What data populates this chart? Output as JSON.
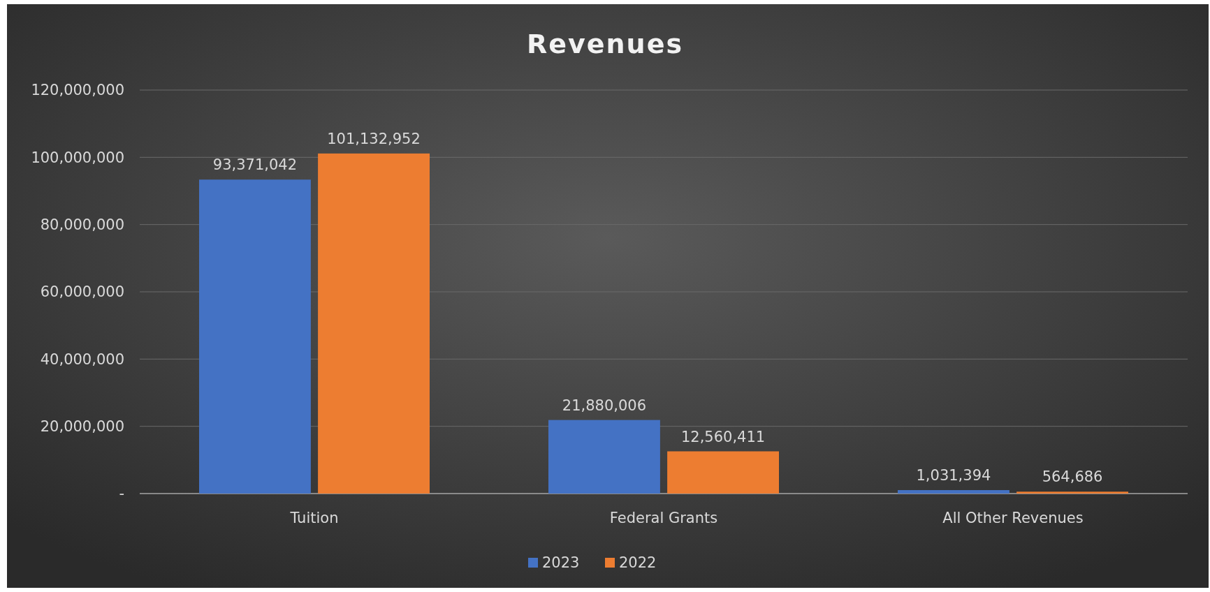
{
  "chart_data": {
    "type": "bar",
    "title": "Revenues",
    "categories": [
      "Tuition",
      "Federal Grants",
      "All Other Revenues"
    ],
    "series": [
      {
        "name": "2023",
        "color": "#4472c4",
        "values": [
          93371042,
          21880006,
          1031394
        ],
        "value_labels": [
          "93,371,042",
          "21,880,006",
          "1,031,394"
        ]
      },
      {
        "name": "2022",
        "color": "#ed7d31",
        "values": [
          101132952,
          12560411,
          564686
        ],
        "value_labels": [
          "101,132,952",
          "12,560,411",
          "564,686"
        ]
      }
    ],
    "ylim": [
      0,
      120000000
    ],
    "yticks": [
      {
        "value": 0,
        "label": "-"
      },
      {
        "value": 20000000,
        "label": "20,000,000"
      },
      {
        "value": 40000000,
        "label": "40,000,000"
      },
      {
        "value": 60000000,
        "label": "60,000,000"
      },
      {
        "value": 80000000,
        "label": "80,000,000"
      },
      {
        "value": 100000000,
        "label": "100,000,000"
      },
      {
        "value": 120000000,
        "label": "120,000,000"
      }
    ],
    "grid": "y",
    "legend": "bottom"
  }
}
